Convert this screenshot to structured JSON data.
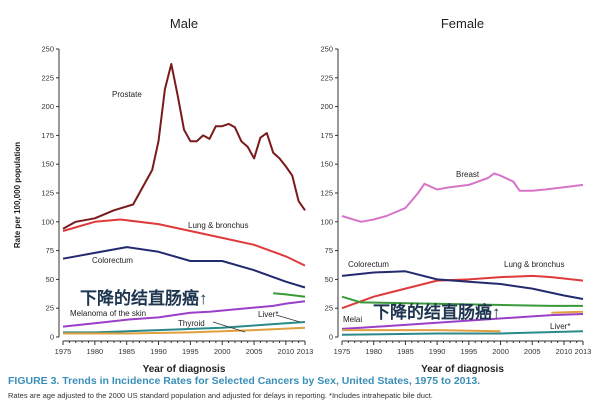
{
  "chart_data": [
    {
      "type": "line",
      "title": "Male",
      "xlabel": "Year of diagnosis",
      "ylabel": "Rate per 100,000 population",
      "xlim": [
        1975,
        2013
      ],
      "ylim": [
        0,
        250
      ],
      "xticks": [
        "1975",
        "1980",
        "1985",
        "1990",
        "1995",
        "2000",
        "2005",
        "2010",
        "2013"
      ],
      "yticks": [
        "0",
        "25",
        "50",
        "75",
        "100",
        "125",
        "150",
        "175",
        "200",
        "225",
        "250"
      ],
      "series": [
        {
          "name": "Prostate",
          "color": "#7a1a1a",
          "x": [
            1975,
            1977,
            1980,
            1983,
            1986,
            1988,
            1989,
            1990,
            1991,
            1992,
            1993,
            1994,
            1995,
            1996,
            1997,
            1998,
            1999,
            2000,
            2001,
            2002,
            2003,
            2004,
            2005,
            2006,
            2007,
            2008,
            2009,
            2010,
            2011,
            2012,
            2013
          ],
          "y": [
            94,
            100,
            103,
            110,
            115,
            135,
            145,
            170,
            215,
            237,
            210,
            180,
            170,
            170,
            175,
            172,
            183,
            183,
            185,
            182,
            170,
            165,
            155,
            173,
            177,
            160,
            155,
            148,
            140,
            118,
            110
          ]
        },
        {
          "name": "Lung & bronchus",
          "color": "#e03a3a",
          "x": [
            1975,
            1980,
            1984,
            1990,
            1995,
            2000,
            2005,
            2010,
            2013
          ],
          "y": [
            92,
            100,
            102,
            98,
            92,
            86,
            80,
            70,
            62
          ]
        },
        {
          "name": "Colorectum",
          "color": "#232a6e",
          "x": [
            1975,
            1980,
            1985,
            1990,
            1995,
            2000,
            2005,
            2010,
            2013
          ],
          "y": [
            68,
            73,
            78,
            74,
            66,
            66,
            58,
            48,
            43
          ]
        },
        {
          "name": "",
          "color": "#3a9a3a",
          "x": [
            2008,
            2010,
            2013
          ],
          "y": [
            38,
            37,
            35
          ]
        },
        {
          "name": "",
          "color": "#9a40c8",
          "x": [
            1975,
            1980,
            1985,
            1990,
            1995,
            1998,
            2008,
            2010,
            2013
          ],
          "y": [
            9,
            12,
            15,
            17,
            21,
            22,
            27,
            29,
            31
          ]
        },
        {
          "name": "Liver*",
          "color": "#2a8a8a",
          "x": [
            1975,
            1980,
            1990,
            2000,
            2005,
            2010,
            2013
          ],
          "y": [
            4,
            4,
            6,
            8,
            10,
            12,
            13
          ]
        },
        {
          "name": "Thyroid",
          "color": "#e0a040",
          "x": [
            1975,
            1985,
            1995,
            2005,
            2013
          ],
          "y": [
            3,
            3,
            4,
            6,
            8
          ]
        }
      ],
      "annotations": [
        "Melanoma of the skin"
      ]
    },
    {
      "type": "line",
      "title": "Female",
      "xlabel": "Year of diagnosis",
      "ylabel": "",
      "xlim": [
        1975,
        2013
      ],
      "ylim": [
        0,
        250
      ],
      "xticks": [
        "1975",
        "1980",
        "1985",
        "1990",
        "1995",
        "2000",
        "2005",
        "2010",
        "2013"
      ],
      "yticks": [
        "0",
        "25",
        "50",
        "75",
        "100",
        "125",
        "150",
        "175",
        "200",
        "225",
        "250"
      ],
      "series": [
        {
          "name": "Breast",
          "color": "#d874c8",
          "x": [
            1975,
            1978,
            1980,
            1982,
            1985,
            1987,
            1988,
            1990,
            1992,
            1995,
            1998,
            1999,
            2000,
            2002,
            2003,
            2005,
            2007,
            2010,
            2013
          ],
          "y": [
            105,
            100,
            102,
            105,
            112,
            125,
            133,
            128,
            130,
            132,
            138,
            142,
            140,
            135,
            127,
            127,
            128,
            130,
            132
          ]
        },
        {
          "name": "Lung & bronchus",
          "color": "#e03a3a",
          "x": [
            1975,
            1980,
            1985,
            1990,
            1995,
            2000,
            2005,
            2008,
            2013
          ],
          "y": [
            25,
            35,
            42,
            49,
            50,
            52,
            53,
            52,
            49
          ]
        },
        {
          "name": "Colorectum",
          "color": "#232a6e",
          "x": [
            1975,
            1980,
            1985,
            1990,
            1995,
            2000,
            2005,
            2010,
            2013
          ],
          "y": [
            53,
            56,
            57,
            50,
            48,
            46,
            42,
            36,
            33
          ]
        },
        {
          "name": "",
          "color": "#3a9a3a",
          "x": [
            1975,
            1978,
            2008,
            2013
          ],
          "y": [
            35,
            30,
            27,
            27
          ]
        },
        {
          "name": "",
          "color": "#e0a040",
          "x": [
            2008,
            2013
          ],
          "y": [
            21,
            22
          ]
        },
        {
          "name": "",
          "color": "#9a40c8",
          "x": [
            1975,
            1978,
            2008,
            2013
          ],
          "y": [
            7,
            8,
            19,
            20
          ]
        },
        {
          "name": "Liver*",
          "color": "#2a8a8a",
          "x": [
            1975,
            1990,
            2000,
            2013
          ],
          "y": [
            2,
            3,
            3,
            5
          ]
        },
        {
          "name": "",
          "color": "#e0a040",
          "x": [
            1975,
            1990,
            2000
          ],
          "y": [
            6,
            6,
            5
          ]
        }
      ],
      "annotations": [
        "Melanoma of the skin"
      ]
    }
  ],
  "overlay_text": "下降的结直肠癌↑",
  "labels": {
    "male": {
      "prostate": "Prostate",
      "lung": "Lung & bronchus",
      "colorectum": "Colorectum",
      "melanoma": "Melanoma of the skin",
      "thyroid": "Thyroid",
      "liver": "Liver*"
    },
    "female": {
      "breast": "Breast",
      "lung": "Lung & bronchus",
      "colorectum": "Colorectum",
      "melanoma": "Melai",
      "liver": "Liver*"
    }
  },
  "caption": "FIGURE 3. Trends in Incidence Rates for Selected Cancers by Sex, United States, 1975 to 2013.",
  "note": "Rates are age adjusted to the 2000 US standard population and adjusted for delays in reporting. *Includes intrahepatic bile duct."
}
